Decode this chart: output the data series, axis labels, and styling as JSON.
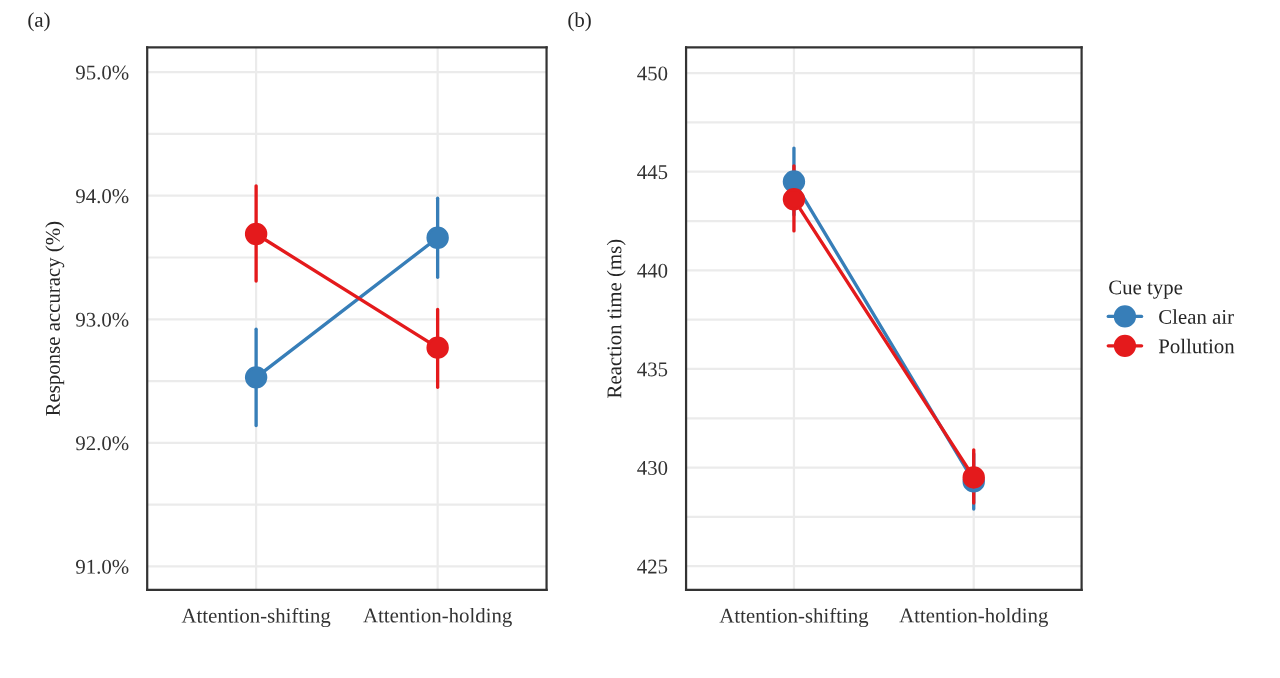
{
  "chart_data": [
    {
      "type": "line",
      "title": "(a)",
      "ylabel": "Response accuracy (%)",
      "categories": [
        "Attention-shifting",
        "Attention-holding"
      ],
      "series": [
        {
          "color": "#377eb8",
          "values": [
            92.53,
            93.66
          ],
          "errors": [
            [
              92.14,
              92.92
            ],
            [
              93.34,
              93.98
            ]
          ]
        },
        {
          "color": "#e41a1c",
          "values": [
            93.69,
            92.77
          ],
          "errors": [
            [
              93.31,
              94.08
            ],
            [
              92.45,
              93.08
            ]
          ]
        }
      ],
      "ylim": [
        90.81,
        95.2
      ],
      "yticks": [
        {
          "value": 91,
          "label": "91.0%"
        },
        {
          "value": 92,
          "label": "92.0%"
        },
        {
          "value": 93,
          "label": "93.0%"
        },
        {
          "value": 94,
          "label": "94.0%"
        },
        {
          "value": 95,
          "label": "95.0%"
        }
      ],
      "grid": true,
      "marker": "circle",
      "line_style": "solid"
    },
    {
      "type": "line",
      "title": "(b)",
      "ylabel": "Reaction time (ms)",
      "legend_title": "Cue type",
      "categories": [
        "Attention-shifting",
        "Attention-holding"
      ],
      "series": [
        {
          "name": "Clean air",
          "color": "#377eb8",
          "values": [
            444.5,
            429.3
          ],
          "errors": [
            [
              442.8,
              446.2
            ],
            [
              427.9,
              430.7
            ]
          ]
        },
        {
          "name": "Pollution",
          "color": "#e41a1c",
          "values": [
            443.6,
            429.5
          ],
          "errors": [
            [
              442.0,
              445.3
            ],
            [
              428.2,
              430.9
            ]
          ]
        }
      ],
      "ylim": [
        423.8,
        451.3
      ],
      "yticks": [
        425,
        430,
        435,
        440,
        445,
        450
      ],
      "grid": true,
      "legend": "right",
      "marker": "circle",
      "line_style": "solid"
    }
  ]
}
